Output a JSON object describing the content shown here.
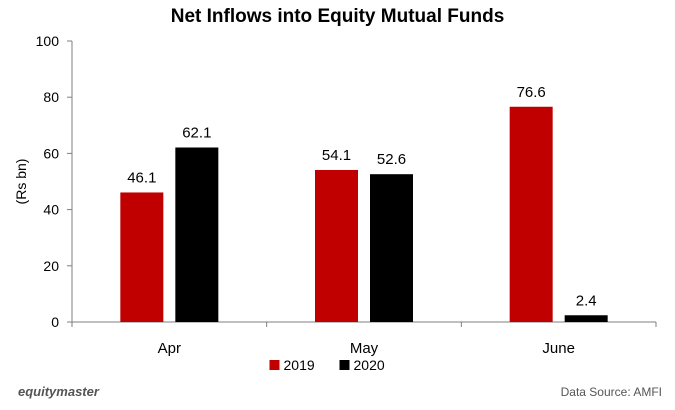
{
  "chart_data": {
    "type": "bar",
    "title": "Net Inflows into Equity Mutual Funds",
    "xlabel": "",
    "ylabel": "(Rs bn)",
    "categories": [
      "Apr",
      "May",
      "June"
    ],
    "series": [
      {
        "name": "2019",
        "values": [
          46.1,
          54.1,
          76.6
        ],
        "color": "#c00000"
      },
      {
        "name": "2020",
        "values": [
          62.1,
          52.6,
          2.4
        ],
        "color": "#000000"
      }
    ],
    "ylim": [
      0,
      100
    ],
    "yticks": [
      0,
      20,
      40,
      60,
      80,
      100
    ],
    "grid": false,
    "legend": "bottom",
    "data_labels": true
  },
  "footer": {
    "brand": "equitymaster",
    "source": "Data Source: AMFI"
  }
}
